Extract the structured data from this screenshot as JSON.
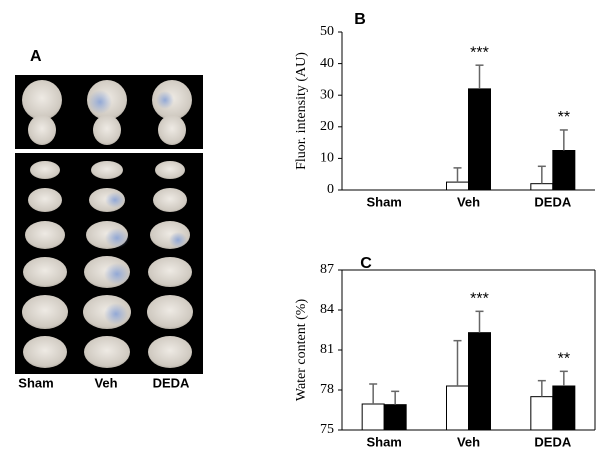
{
  "panel_a": {
    "label": "A",
    "columns": [
      "Sham",
      "Veh",
      "DEDA"
    ]
  },
  "chart_data": [
    {
      "type": "bar",
      "panel": "B",
      "ylabel": "Fluor. intensity (AU)",
      "categories": [
        "Sham",
        "Veh",
        "DEDA"
      ],
      "series": [
        {
          "color": "#ffffff",
          "values": [
            0,
            2.5,
            2
          ],
          "errors": [
            null,
            4.5,
            5.5
          ]
        },
        {
          "color": "#000000",
          "values": [
            0,
            32,
            12.5
          ],
          "errors": [
            null,
            7.5,
            6.5
          ]
        }
      ],
      "annotations": [
        "***",
        "**"
      ],
      "ylim": [
        0,
        50
      ],
      "yticks": [
        0,
        10,
        20,
        30,
        40,
        50
      ],
      "frame": false
    },
    {
      "type": "bar",
      "panel": "C",
      "ylabel": "Water content (%)",
      "categories": [
        "Sham",
        "Veh",
        "DEDA"
      ],
      "series": [
        {
          "color": "#ffffff",
          "values": [
            76.95,
            78.3,
            77.5
          ],
          "errors": [
            1.5,
            3.4,
            1.2
          ]
        },
        {
          "color": "#000000",
          "values": [
            76.9,
            82.3,
            78.3
          ],
          "errors": [
            1.0,
            1.6,
            1.1
          ]
        }
      ],
      "annotations": [
        "***",
        "**"
      ],
      "ylim": [
        75,
        87
      ],
      "yticks": [
        75,
        78,
        81,
        84,
        87
      ],
      "frame": true
    }
  ]
}
